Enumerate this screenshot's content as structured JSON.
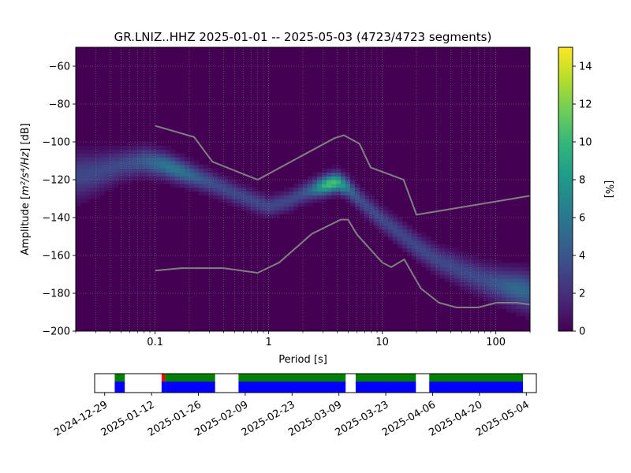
{
  "chart_data": {
    "type": "heatmap",
    "title": "GR.LNIZ..HHZ   2025-01-01 -- 2025-05-03  (4723/4723 segments)",
    "xlabel": "Period [s]",
    "ylabel_prefix": "Amplitude [",
    "ylabel_unit": "m²/s⁴/Hz",
    "ylabel_suffix": "] [dB]",
    "x_scale": "log",
    "xlim": [
      0.02,
      200
    ],
    "ylim": [
      -200,
      -50
    ],
    "x_ticks": [
      {
        "value": 0.1,
        "label": "0.1"
      },
      {
        "value": 1,
        "label": "1"
      },
      {
        "value": 10,
        "label": "10"
      },
      {
        "value": 100,
        "label": "100"
      }
    ],
    "y_ticks": [
      {
        "value": -60,
        "label": "−60"
      },
      {
        "value": -80,
        "label": "−80"
      },
      {
        "value": -100,
        "label": "−100"
      },
      {
        "value": -120,
        "label": "−120"
      },
      {
        "value": -140,
        "label": "−140"
      },
      {
        "value": -160,
        "label": "−160"
      },
      {
        "value": -180,
        "label": "−180"
      },
      {
        "value": -200,
        "label": "−200"
      }
    ],
    "grid": true,
    "colorbar": {
      "label": "[%]",
      "range": [
        0,
        15
      ],
      "ticks": [
        {
          "value": 0,
          "label": "0"
        },
        {
          "value": 2,
          "label": "2"
        },
        {
          "value": 4,
          "label": "4"
        },
        {
          "value": 6,
          "label": "6"
        },
        {
          "value": 8,
          "label": "8"
        },
        {
          "value": 10,
          "label": "10"
        },
        {
          "value": 12,
          "label": "12"
        },
        {
          "value": 14,
          "label": "14"
        }
      ],
      "colormap": [
        "#440154",
        "#482878",
        "#3e4989",
        "#31688e",
        "#26828e",
        "#1f9e89",
        "#35b779",
        "#6ece58",
        "#b5de2b",
        "#fde725"
      ]
    },
    "mode_path": [
      [
        0.02,
        -118
      ],
      [
        0.03,
        -116
      ],
      [
        0.05,
        -112
      ],
      [
        0.08,
        -110
      ],
      [
        0.12,
        -112
      ],
      [
        0.2,
        -117
      ],
      [
        0.3,
        -121
      ],
      [
        0.5,
        -127
      ],
      [
        0.8,
        -132
      ],
      [
        1.0,
        -134
      ],
      [
        1.5,
        -131
      ],
      [
        2.0,
        -127
      ],
      [
        3.0,
        -123
      ],
      [
        4.0,
        -121
      ],
      [
        5.0,
        -124
      ],
      [
        6.0,
        -129
      ],
      [
        8.0,
        -136
      ],
      [
        10,
        -141
      ],
      [
        15,
        -149
      ],
      [
        20,
        -155
      ],
      [
        30,
        -162
      ],
      [
        50,
        -168
      ],
      [
        80,
        -173
      ],
      [
        120,
        -176
      ],
      [
        200,
        -179
      ]
    ],
    "band_halfwidth_db": [
      [
        0.02,
        14
      ],
      [
        0.05,
        9
      ],
      [
        0.2,
        7
      ],
      [
        1.0,
        6
      ],
      [
        4.0,
        6
      ],
      [
        10,
        7
      ],
      [
        30,
        8
      ],
      [
        100,
        10
      ],
      [
        200,
        12
      ]
    ],
    "noise_models": [
      {
        "name": "NHNM",
        "color": "#808080",
        "points": [
          [
            0.1,
            -91.5
          ],
          [
            0.22,
            -97.4
          ],
          [
            0.32,
            -110.5
          ],
          [
            0.8,
            -120.0
          ],
          [
            3.8,
            -98.0
          ],
          [
            4.6,
            -96.5
          ],
          [
            6.3,
            -101.0
          ],
          [
            7.9,
            -113.5
          ],
          [
            15.4,
            -120.0
          ],
          [
            20.0,
            -138.5
          ],
          [
            200,
            -128.5
          ]
        ]
      },
      {
        "name": "NLNM",
        "color": "#808080",
        "points": [
          [
            0.1,
            -168.0
          ],
          [
            0.17,
            -166.7
          ],
          [
            0.4,
            -166.7
          ],
          [
            0.8,
            -169.2
          ],
          [
            1.24,
            -163.7
          ],
          [
            2.4,
            -148.6
          ],
          [
            4.3,
            -141.1
          ],
          [
            5.0,
            -141.1
          ],
          [
            6.0,
            -149.0
          ],
          [
            10.0,
            -163.8
          ],
          [
            12.0,
            -166.2
          ],
          [
            15.6,
            -162.1
          ],
          [
            21.9,
            -177.5
          ],
          [
            31.6,
            -185.0
          ],
          [
            45.0,
            -187.5
          ],
          [
            70.0,
            -187.5
          ],
          [
            101,
            -185.0
          ],
          [
            154,
            -185.0
          ],
          [
            200,
            -186.0
          ]
        ]
      }
    ]
  },
  "timeline": {
    "date_range": [
      "2024-12-26",
      "2025-05-07"
    ],
    "tick_labels": [
      "2024-12-29",
      "2025-01-12",
      "2025-01-26",
      "2025-02-09",
      "2025-02-23",
      "2025-03-09",
      "2025-03-23",
      "2025-04-06",
      "2025-04-20",
      "2025-05-04"
    ],
    "colors": {
      "data": "#0000ff",
      "used": "#008000",
      "gap": "#ff0000"
    },
    "segments": [
      {
        "start": "2025-01-01",
        "end": "2025-01-04",
        "status": "data"
      },
      {
        "start": "2025-01-15",
        "end": "2025-01-16",
        "status": "gap"
      },
      {
        "start": "2025-01-16",
        "end": "2025-01-31",
        "status": "data"
      },
      {
        "start": "2025-02-07",
        "end": "2025-03-11",
        "status": "data"
      },
      {
        "start": "2025-03-14",
        "end": "2025-04-01",
        "status": "data"
      },
      {
        "start": "2025-04-05",
        "end": "2025-05-03",
        "status": "data"
      }
    ]
  }
}
